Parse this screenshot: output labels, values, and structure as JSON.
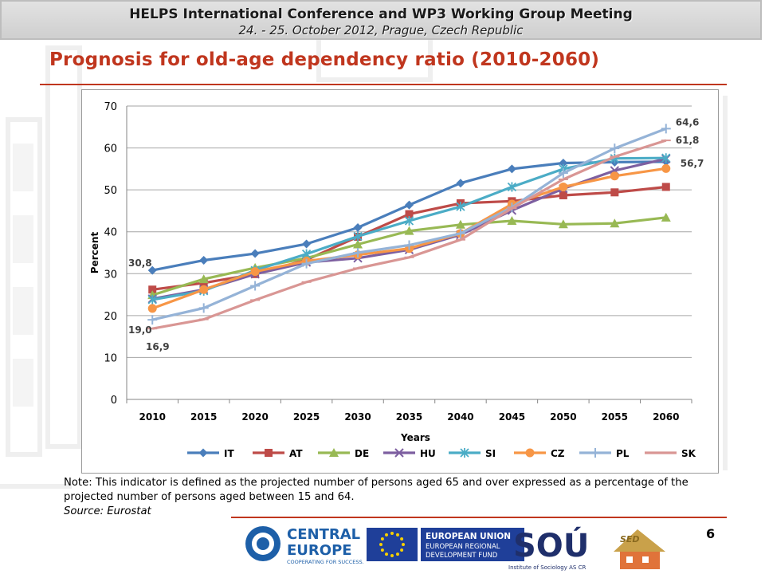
{
  "header": {
    "title": "HELPS International Conference and WP3 Working Group Meeting",
    "subtitle": "24. - 25. October 2012, Prague, Czech Republic"
  },
  "slide": {
    "title": "Prognosis for old-age dependency ratio (2010-2060)",
    "note_text": "Note: This indicator is defined as the projected number of persons aged 65 and over expressed as a percentage of the projected number of persons aged between 15 and 64.",
    "source_text": "Source: Eurostat",
    "page_number": "6"
  },
  "logos": {
    "central_europe": [
      "CENTRAL",
      "EUROPE",
      "COOPERATING FOR SUCCESS."
    ],
    "eu": [
      "EUROPEAN UNION",
      "EUROPEAN REGIONAL",
      "DEVELOPMENT FUND"
    ],
    "sou": [
      "SOÚ",
      "Institute of Sociology AS CR"
    ],
    "sed": "SED"
  },
  "chart_data": {
    "type": "line",
    "xlabel": "Years",
    "ylabel": "Percent",
    "ylim": [
      0,
      70
    ],
    "yticks": [
      0,
      10,
      20,
      30,
      40,
      50,
      60,
      70
    ],
    "grid": true,
    "legend_position": "bottom",
    "categories": [
      "2010",
      "2015",
      "2020",
      "2025",
      "2030",
      "2035",
      "2040",
      "2045",
      "2050",
      "2055",
      "2060"
    ],
    "series": [
      {
        "name": "IT",
        "color": "#4a7ebb",
        "marker": "diamond",
        "values": [
          30.8,
          33.2,
          34.8,
          37.1,
          41.0,
          46.4,
          51.6,
          55.0,
          56.4,
          56.6,
          56.7
        ]
      },
      {
        "name": "AT",
        "color": "#be4b48",
        "marker": "square",
        "values": [
          26.2,
          27.8,
          29.9,
          33.3,
          38.8,
          44.2,
          46.8,
          47.3,
          48.7,
          49.4,
          50.7
        ]
      },
      {
        "name": "DE",
        "color": "#98b954",
        "marker": "triangle",
        "values": [
          24.9,
          28.7,
          31.4,
          33.7,
          37.0,
          40.2,
          41.7,
          42.6,
          41.8,
          42.0,
          43.4
        ]
      },
      {
        "name": "HU",
        "color": "#7d5fa0",
        "marker": "x",
        "values": [
          24.0,
          26.2,
          29.9,
          32.7,
          33.7,
          35.7,
          39.3,
          45.1,
          50.3,
          54.6,
          57.4
        ]
      },
      {
        "name": "SI",
        "color": "#4bacc6",
        "marker": "asterisk",
        "values": [
          23.8,
          25.9,
          30.8,
          34.7,
          38.9,
          42.6,
          46.0,
          50.7,
          55.0,
          57.5,
          57.6
        ]
      },
      {
        "name": "CZ",
        "color": "#f79646",
        "marker": "circle",
        "values": [
          21.7,
          26.2,
          30.5,
          33.0,
          34.5,
          36.0,
          39.6,
          46.6,
          50.7,
          53.3,
          55.1
        ]
      },
      {
        "name": "PL",
        "color": "#95b3d7",
        "marker": "plus",
        "values": [
          19.0,
          21.8,
          27.1,
          32.4,
          35.0,
          36.8,
          39.6,
          45.8,
          54.0,
          59.9,
          64.6
        ]
      },
      {
        "name": "SK",
        "color": "#d99694",
        "marker": "dash",
        "values": [
          16.9,
          19.1,
          23.7,
          28.0,
          31.3,
          33.9,
          38.1,
          45.6,
          52.5,
          57.9,
          61.8
        ]
      }
    ],
    "annotations": [
      "30,8",
      "19,0",
      "16,9",
      "64,6",
      "61,8",
      "56,7"
    ]
  }
}
